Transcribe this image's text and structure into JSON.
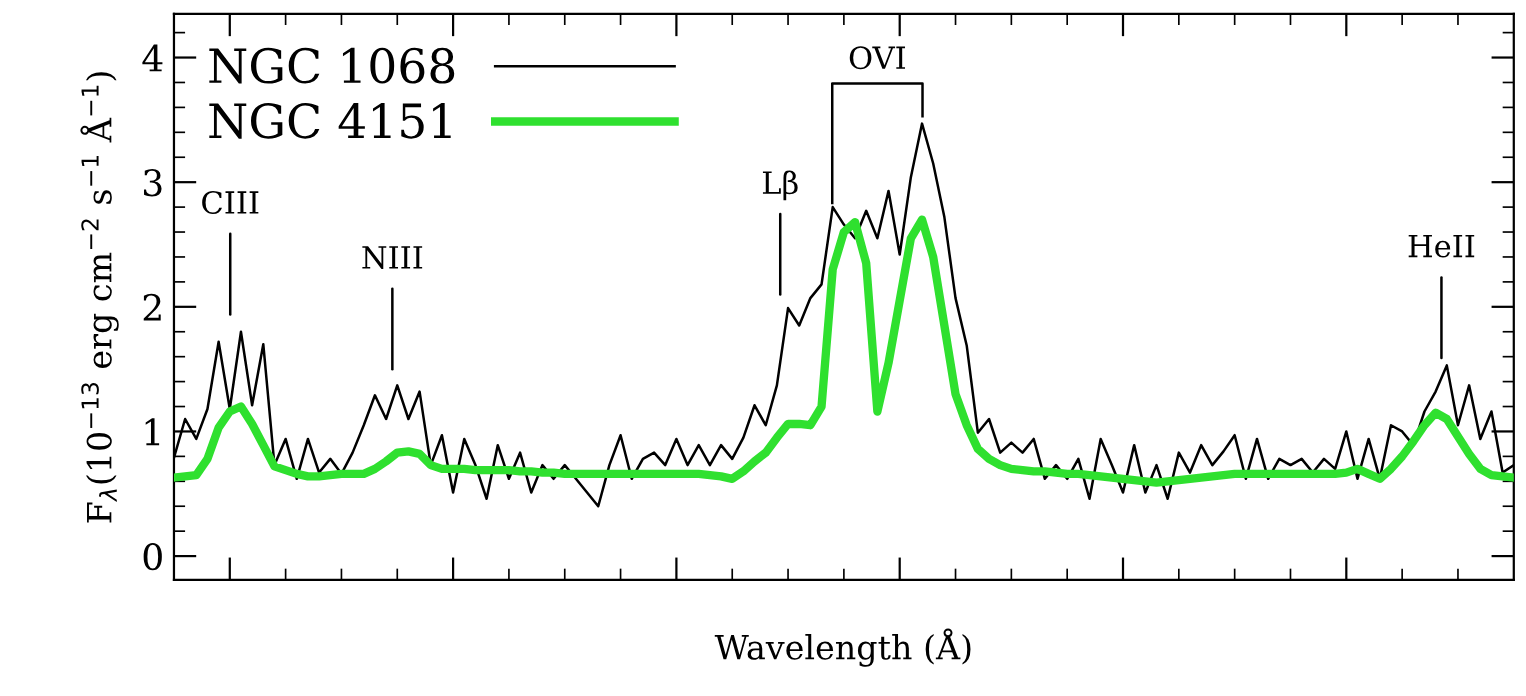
{
  "chart_data": {
    "type": "line",
    "xlabel": "Wavelength (Å)",
    "ylabel": "F$_{λ}$(10$^{−13}$ erg cm$^{−2}$ s$^{−1}$ Å$^{−1}$)",
    "categories": [
      null,
      null,
      null,
      null,
      null,
      null,
      null,
      null,
      null,
      null,
      null,
      null,
      null,
      null,
      null,
      null,
      null,
      null,
      null,
      null,
      null,
      null,
      null,
      null,
      null,
      null,
      null,
      null,
      null,
      null,
      null,
      null,
      null,
      null,
      null,
      null,
      null,
      null,
      null,
      null,
      null,
      null,
      null,
      null,
      null,
      null,
      null,
      null,
      null,
      null,
      null,
      null,
      null,
      null,
      null,
      null,
      null,
      null,
      null,
      null,
      null,
      null,
      null,
      null,
      null,
      null,
      null,
      null,
      null,
      null,
      null,
      null,
      null,
      null,
      null,
      null,
      null,
      null,
      null,
      null,
      null,
      null,
      null,
      null,
      null,
      null,
      null,
      null,
      null,
      null,
      null,
      null,
      null,
      null,
      null,
      null,
      null,
      null,
      null,
      null,
      null,
      null,
      null,
      null,
      null,
      null,
      null,
      null,
      null,
      null,
      null,
      null,
      null,
      null,
      null,
      null,
      null,
      null,
      null,
      null,
      null
    ],
    "ylim": [
      -0.19,
      4.35
    ],
    "yticks": [
      0,
      1,
      2,
      3,
      4
    ],
    "tick_labels": "y",
    "grid": false,
    "legend": "top left",
    "marker": "none",
    "line_style": "solid",
    "annotations": [
      "CIII",
      "NIII",
      "Lβ",
      "OVI",
      "HeII"
    ],
    "series": [
      {
        "name": "NGC 1068",
        "color": "#000000",
        "values": [
          0.79,
          1.1,
          0.94,
          1.18,
          1.72,
          1.18,
          1.8,
          1.21,
          1.7,
          0.73,
          0.94,
          0.62,
          0.94,
          0.67,
          0.78,
          0.66,
          0.83,
          1.05,
          1.29,
          1.1,
          1.37,
          1.1,
          1.32,
          0.73,
          0.97,
          0.51,
          0.94,
          0.73,
          0.46,
          0.89,
          0.62,
          0.83,
          0.51,
          0.73,
          0.62,
          0.73,
          0.62,
          0.51,
          0.4,
          0.73,
          0.97,
          0.62,
          0.78,
          0.83,
          0.73,
          0.94,
          0.73,
          0.89,
          0.73,
          0.89,
          0.78,
          0.95,
          1.21,
          1.05,
          1.37,
          1.99,
          1.85,
          2.07,
          2.18,
          2.8,
          2.66,
          2.55,
          2.77,
          2.55,
          2.93,
          2.42,
          3.04,
          3.47,
          3.15,
          2.72,
          2.07,
          1.69,
          0.99,
          1.1,
          0.83,
          0.91,
          0.83,
          0.94,
          0.62,
          0.73,
          0.62,
          0.78,
          0.46,
          0.94,
          0.73,
          0.51,
          0.89,
          0.51,
          0.73,
          0.46,
          0.83,
          0.67,
          0.89,
          0.73,
          0.84,
          0.97,
          0.62,
          0.94,
          0.62,
          0.78,
          0.73,
          0.78,
          0.67,
          0.78,
          0.7,
          1.0,
          0.62,
          0.94,
          0.62,
          1.05,
          1.0,
          0.89,
          1.16,
          1.32,
          1.53,
          1.05,
          1.37,
          0.94,
          1.16,
          0.67,
          0.73
        ]
      },
      {
        "name": "NGC 4151",
        "color": "#2fe02f",
        "values": [
          0.63,
          0.64,
          0.65,
          0.78,
          1.03,
          1.16,
          1.2,
          1.06,
          0.89,
          0.72,
          0.69,
          0.66,
          0.64,
          0.64,
          0.65,
          0.66,
          0.66,
          0.66,
          0.7,
          0.76,
          0.83,
          0.84,
          0.82,
          0.73,
          0.7,
          0.7,
          0.7,
          0.69,
          0.69,
          0.69,
          0.69,
          0.68,
          0.68,
          0.67,
          0.67,
          0.66,
          0.66,
          0.66,
          0.66,
          0.66,
          0.66,
          0.66,
          0.66,
          0.66,
          0.66,
          0.66,
          0.66,
          0.66,
          0.65,
          0.64,
          0.62,
          0.68,
          0.76,
          0.83,
          0.95,
          1.06,
          1.06,
          1.05,
          1.2,
          2.3,
          2.6,
          2.68,
          2.35,
          1.16,
          1.55,
          2.05,
          2.55,
          2.7,
          2.4,
          1.85,
          1.3,
          1.05,
          0.86,
          0.78,
          0.73,
          0.7,
          0.69,
          0.68,
          0.68,
          0.67,
          0.66,
          0.66,
          0.65,
          0.64,
          0.63,
          0.62,
          0.61,
          0.6,
          0.59,
          0.6,
          0.61,
          0.62,
          0.63,
          0.64,
          0.65,
          0.66,
          0.66,
          0.66,
          0.66,
          0.66,
          0.66,
          0.66,
          0.66,
          0.66,
          0.66,
          0.67,
          0.7,
          0.66,
          0.62,
          0.7,
          0.8,
          0.92,
          1.05,
          1.15,
          1.1,
          0.96,
          0.82,
          0.7,
          0.65,
          0.64,
          0.63
        ]
      }
    ]
  }
}
